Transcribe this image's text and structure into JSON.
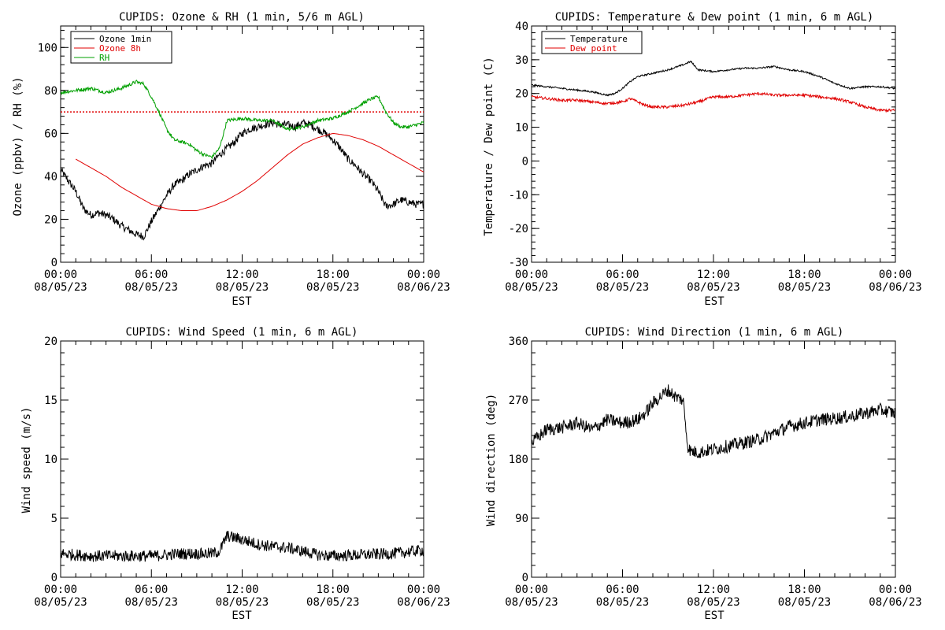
{
  "colors": {
    "black": "#000000",
    "red": "#e00000",
    "green": "#00a000"
  },
  "chart_data": [
    {
      "type": "line",
      "title": "CUPIDS: Ozone & RH (1 min, 5/6 m AGL)",
      "xlabel": "EST",
      "ylabel": "Ozone (ppbv) / RH (%)",
      "xlim": [
        0,
        24
      ],
      "ylim": [
        0,
        110
      ],
      "yticks": [
        0,
        20,
        40,
        60,
        80,
        100
      ],
      "xtick_labels": [
        {
          "time": "00:00",
          "date": "08/05/23"
        },
        {
          "time": "06:00",
          "date": "08/05/23"
        },
        {
          "time": "12:00",
          "date": "08/05/23"
        },
        {
          "time": "18:00",
          "date": "08/05/23"
        },
        {
          "time": "00:00",
          "date": "08/06/23"
        }
      ],
      "legend": "top-left",
      "reference_line": {
        "y": 70,
        "color": "#e00000",
        "style": "dotted"
      },
      "series": [
        {
          "name": "Ozone 1min",
          "color": "#000000",
          "x": [
            0,
            0.5,
            1,
            1.5,
            2,
            2.5,
            3,
            3.5,
            4,
            4.5,
            5,
            5.5,
            6,
            6.5,
            7,
            7.5,
            8,
            8.5,
            9,
            9.5,
            10,
            10.5,
            11,
            11.5,
            12,
            12.5,
            13,
            13.5,
            14,
            14.5,
            15,
            15.5,
            16,
            16.5,
            17,
            17.5,
            18,
            18.5,
            19,
            19.5,
            20,
            20.5,
            21,
            21.5,
            22,
            22.5,
            23,
            23.5,
            24
          ],
          "y": [
            43,
            38,
            33,
            25,
            22,
            23,
            22,
            20,
            17,
            15,
            13,
            12,
            19,
            25,
            31,
            36,
            38,
            41,
            43,
            45,
            46,
            50,
            53,
            56,
            60,
            62,
            63,
            64,
            65,
            64,
            64,
            63,
            65,
            64,
            62,
            60,
            57,
            53,
            48,
            45,
            41,
            38,
            33,
            26,
            27,
            29,
            28,
            27,
            27
          ],
          "noise": 1.8
        },
        {
          "name": "Ozone 8h",
          "color": "#e00000",
          "x": [
            1,
            2,
            3,
            4,
            5,
            6,
            7,
            8,
            9,
            10,
            11,
            12,
            13,
            14,
            15,
            16,
            17,
            18,
            19,
            20,
            21,
            22,
            23,
            24
          ],
          "y": [
            48,
            44,
            40,
            35,
            31,
            27,
            25,
            24,
            24,
            26,
            29,
            33,
            38,
            44,
            50,
            55,
            58,
            60,
            59,
            57,
            54,
            50,
            46,
            42
          ],
          "noise": 0
        },
        {
          "name": "RH",
          "color": "#00a000",
          "x": [
            0,
            1,
            2,
            3,
            4,
            5,
            5.5,
            6,
            6.5,
            7,
            7.5,
            8,
            8.5,
            9,
            9.5,
            10,
            10.5,
            11,
            12,
            13,
            14,
            15,
            16,
            17,
            18,
            19,
            20,
            20.5,
            21,
            21.5,
            22,
            22.5,
            23,
            24
          ],
          "y": [
            79,
            80,
            81,
            79,
            81,
            84,
            83,
            77,
            70,
            62,
            57,
            56,
            55,
            52,
            50,
            49,
            53,
            66,
            67,
            66,
            66,
            62,
            63,
            66,
            67,
            70,
            74,
            76,
            77,
            70,
            65,
            63,
            63,
            65
          ],
          "noise": 0.8
        }
      ]
    },
    {
      "type": "line",
      "title": "CUPIDS: Temperature & Dew point (1 min, 6 m AGL)",
      "xlabel": "EST",
      "ylabel": "Temperature / Dew point (C)",
      "xlim": [
        0,
        24
      ],
      "ylim": [
        -30,
        40
      ],
      "yticks": [
        -30,
        -20,
        -10,
        0,
        10,
        20,
        30,
        40
      ],
      "xtick_labels": [
        {
          "time": "00:00",
          "date": "08/05/23"
        },
        {
          "time": "06:00",
          "date": "08/05/23"
        },
        {
          "time": "12:00",
          "date": "08/05/23"
        },
        {
          "time": "18:00",
          "date": "08/05/23"
        },
        {
          "time": "00:00",
          "date": "08/06/23"
        }
      ],
      "legend": "top-left",
      "series": [
        {
          "name": "Temperature",
          "color": "#000000",
          "x": [
            0,
            1,
            2,
            3,
            4,
            5,
            5.5,
            6,
            6.5,
            7,
            8,
            9,
            10,
            10.5,
            11,
            12,
            13,
            14,
            15,
            16,
            17,
            18,
            19,
            20,
            21,
            22,
            23,
            24
          ],
          "y": [
            22.5,
            22,
            21.5,
            21,
            20.5,
            19.5,
            20,
            21.5,
            23.5,
            25,
            26,
            27,
            28.5,
            29.5,
            27,
            26.5,
            27,
            27.5,
            27.5,
            28,
            27,
            26.5,
            25,
            23,
            21.5,
            22,
            22,
            21.5
          ],
          "noise": 0.25
        },
        {
          "name": "Dew point",
          "color": "#e00000",
          "x": [
            0,
            1,
            2,
            3,
            4,
            5,
            6,
            6.5,
            7,
            7.5,
            8,
            9,
            10,
            11,
            12,
            13,
            14,
            15,
            16,
            17,
            18,
            19,
            20,
            21,
            22,
            23,
            24
          ],
          "y": [
            19,
            18.5,
            18,
            18,
            17.5,
            17,
            17.5,
            18.5,
            17.5,
            16.5,
            16,
            16,
            16.5,
            17.5,
            19,
            19,
            19.5,
            20,
            19.5,
            19.5,
            19.5,
            19,
            18.5,
            17.5,
            16,
            15,
            15
          ],
          "noise": 0.4
        }
      ]
    },
    {
      "type": "line",
      "title": "CUPIDS: Wind Speed (1 min, 6 m AGL)",
      "xlabel": "EST",
      "ylabel": "Wind speed (m/s)",
      "xlim": [
        0,
        24
      ],
      "ylim": [
        0,
        20
      ],
      "yticks": [
        0,
        5,
        10,
        15,
        20
      ],
      "xtick_labels": [
        {
          "time": "00:00",
          "date": "08/05/23"
        },
        {
          "time": "06:00",
          "date": "08/05/23"
        },
        {
          "time": "12:00",
          "date": "08/05/23"
        },
        {
          "time": "18:00",
          "date": "08/05/23"
        },
        {
          "time": "00:00",
          "date": "08/06/23"
        }
      ],
      "series": [
        {
          "name": "",
          "color": "#000000",
          "x": [
            0,
            2,
            4,
            6,
            8,
            10,
            10.5,
            11,
            12,
            13,
            14,
            15,
            16,
            17,
            18,
            20,
            22,
            24
          ],
          "y": [
            2,
            1.8,
            1.8,
            1.8,
            2,
            2,
            2.2,
            3.5,
            3.2,
            2.8,
            2.6,
            2.5,
            2.2,
            1.9,
            1.8,
            1.9,
            2,
            2.3
          ],
          "noise": 0.5
        }
      ]
    },
    {
      "type": "line",
      "title": "CUPIDS: Wind Direction (1 min, 6 m AGL)",
      "xlabel": "EST",
      "ylabel": "Wind direction (deg)",
      "xlim": [
        0,
        24
      ],
      "ylim": [
        0,
        360
      ],
      "yticks": [
        0,
        90,
        180,
        270,
        360
      ],
      "xtick_labels": [
        {
          "time": "00:00",
          "date": "08/05/23"
        },
        {
          "time": "06:00",
          "date": "08/05/23"
        },
        {
          "time": "12:00",
          "date": "08/05/23"
        },
        {
          "time": "18:00",
          "date": "08/05/23"
        },
        {
          "time": "00:00",
          "date": "08/06/23"
        }
      ],
      "series": [
        {
          "name": "",
          "color": "#000000",
          "x": [
            0,
            1,
            2,
            3,
            4,
            5,
            6,
            7,
            7.5,
            8,
            8.5,
            9,
            9.5,
            10,
            10.3,
            10.5,
            11,
            12,
            13,
            14,
            15,
            16,
            17,
            18,
            19,
            20,
            21,
            22,
            23,
            24
          ],
          "y": [
            205,
            225,
            228,
            235,
            225,
            240,
            235,
            240,
            250,
            265,
            275,
            285,
            275,
            270,
            200,
            192,
            190,
            195,
            200,
            205,
            210,
            220,
            230,
            235,
            240,
            242,
            245,
            250,
            255,
            250
          ],
          "noise": 10
        }
      ]
    }
  ]
}
